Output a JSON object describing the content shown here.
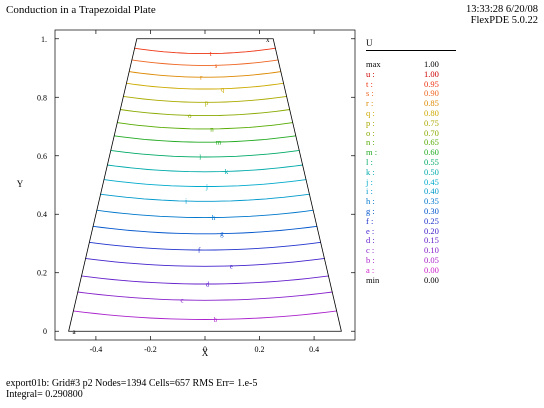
{
  "header": {
    "title": "Conduction in a Trapezoidal Plate",
    "time": "13:33:28 6/20/08",
    "software": "FlexPDE 5.0.22"
  },
  "footer": {
    "line1": "export01b:  Grid#3  p2  Nodes=1394 Cells=657 RMS Err= 1.e-5",
    "line2": "Integral=  0.290800"
  },
  "legend": {
    "title": "U",
    "rows": [
      {
        "label": "max",
        "value": "1.00",
        "color": "#000000"
      },
      {
        "label": "u :",
        "value": "1.00",
        "color": "#cc0000"
      },
      {
        "label": "t :",
        "value": "0.95",
        "color": "#ee3311"
      },
      {
        "label": "s :",
        "value": "0.90",
        "color": "#ee6622"
      },
      {
        "label": "r :",
        "value": "0.85",
        "color": "#dd8800"
      },
      {
        "label": "q :",
        "value": "0.80",
        "color": "#ccaa00"
      },
      {
        "label": "p :",
        "value": "0.75",
        "color": "#aaaa00"
      },
      {
        "label": "o :",
        "value": "0.70",
        "color": "#88aa00"
      },
      {
        "label": "n :",
        "value": "0.65",
        "color": "#55aa00"
      },
      {
        "label": "m :",
        "value": "0.60",
        "color": "#22aa22"
      },
      {
        "label": "l :",
        "value": "0.55",
        "color": "#00aa66"
      },
      {
        "label": "k :",
        "value": "0.50",
        "color": "#00aaaa"
      },
      {
        "label": "j :",
        "value": "0.45",
        "color": "#00aacc"
      },
      {
        "label": "i :",
        "value": "0.40",
        "color": "#0099cc"
      },
      {
        "label": "h :",
        "value": "0.35",
        "color": "#0077cc"
      },
      {
        "label": "g :",
        "value": "0.30",
        "color": "#0055cc"
      },
      {
        "label": "f :",
        "value": "0.25",
        "color": "#2233cc"
      },
      {
        "label": "e :",
        "value": "0.20",
        "color": "#4422cc"
      },
      {
        "label": "d :",
        "value": "0.15",
        "color": "#6622cc"
      },
      {
        "label": "c :",
        "value": "0.10",
        "color": "#8822cc"
      },
      {
        "label": "b :",
        "value": "0.05",
        "color": "#aa22cc"
      },
      {
        "label": "a :",
        "value": "0.00",
        "color": "#cc22cc"
      },
      {
        "label": "min",
        "value": "0.00",
        "color": "#000000"
      }
    ]
  },
  "chart_data": {
    "type": "contour",
    "title": "Conduction in a Trapezoidal Plate",
    "xlabel": "X",
    "ylabel": "Y",
    "xlim": [
      -0.55,
      0.55
    ],
    "ylim": [
      -0.03,
      1.03
    ],
    "xticks": [
      "-0.4",
      "-0.2",
      "0",
      "0.2",
      "0.4"
    ],
    "xtick_values": [
      -0.4,
      -0.2,
      0,
      0.2,
      0.4
    ],
    "yticks": [
      "0",
      "0.2",
      "0.4",
      "0.6",
      "0.8",
      "1."
    ],
    "ytick_values": [
      0,
      0.2,
      0.4,
      0.6,
      0.8,
      1.0
    ],
    "domain_vertices": [
      [
        -0.5,
        0
      ],
      [
        0.5,
        0
      ],
      [
        0.25,
        1
      ],
      [
        -0.25,
        1
      ]
    ],
    "contours": [
      {
        "label": "b",
        "level": 0.05,
        "y": 0.065,
        "color": "#aa22cc"
      },
      {
        "label": "c",
        "level": 0.1,
        "y": 0.13,
        "color": "#8822cc"
      },
      {
        "label": "d",
        "level": 0.15,
        "y": 0.185,
        "color": "#6622cc"
      },
      {
        "label": "e",
        "level": 0.2,
        "y": 0.245,
        "color": "#4422cc"
      },
      {
        "label": "f",
        "level": 0.25,
        "y": 0.3,
        "color": "#2233cc"
      },
      {
        "label": "g",
        "level": 0.3,
        "y": 0.355,
        "color": "#0055cc"
      },
      {
        "label": "h",
        "level": 0.35,
        "y": 0.41,
        "color": "#0077cc"
      },
      {
        "label": "i",
        "level": 0.4,
        "y": 0.465,
        "color": "#0099cc"
      },
      {
        "label": "j",
        "level": 0.45,
        "y": 0.515,
        "color": "#00aacc"
      },
      {
        "label": "k",
        "level": 0.5,
        "y": 0.565,
        "color": "#00aaaa"
      },
      {
        "label": "l",
        "level": 0.55,
        "y": 0.615,
        "color": "#00aa66"
      },
      {
        "label": "m",
        "level": 0.6,
        "y": 0.665,
        "color": "#22aa22"
      },
      {
        "label": "n",
        "level": 0.65,
        "y": 0.71,
        "color": "#55aa00"
      },
      {
        "label": "o",
        "level": 0.7,
        "y": 0.755,
        "color": "#88aa00"
      },
      {
        "label": "p",
        "level": 0.75,
        "y": 0.8,
        "color": "#aaaa00"
      },
      {
        "label": "q",
        "level": 0.8,
        "y": 0.845,
        "color": "#ccaa00"
      },
      {
        "label": "r",
        "level": 0.85,
        "y": 0.885,
        "color": "#dd8800"
      },
      {
        "label": "s",
        "level": 0.9,
        "y": 0.925,
        "color": "#ee6622"
      },
      {
        "label": "t",
        "level": 0.95,
        "y": 0.965,
        "color": "#ee3311"
      }
    ],
    "markers": [
      {
        "label": "x",
        "x": 0.23,
        "y": 1.0
      },
      {
        "label": "a",
        "x": -0.48,
        "y": 0.0
      }
    ]
  }
}
